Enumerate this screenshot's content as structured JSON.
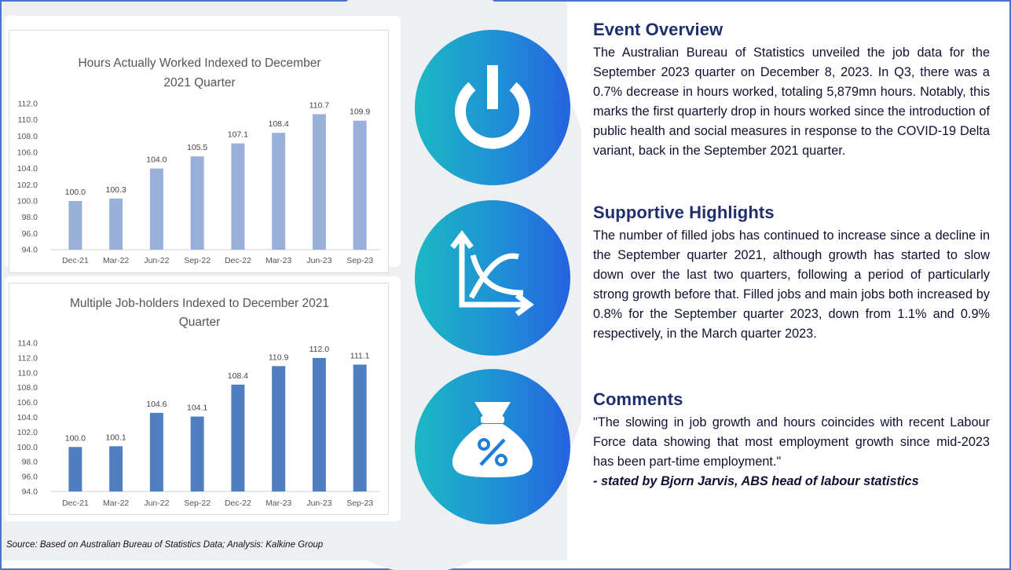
{
  "charts": [
    {
      "title_line1": "Hours Actually Worked Indexed to December",
      "title_line2": "2021 Quarter"
    },
    {
      "title_line1": "Multiple Job-holders Indexed to December 2021",
      "title_line2": "Quarter"
    }
  ],
  "chart_data": [
    {
      "type": "bar",
      "title": "Hours Actually Worked Indexed to December 2021 Quarter",
      "categories": [
        "Dec-21",
        "Mar-22",
        "Jun-22",
        "Sep-22",
        "Dec-22",
        "Mar-23",
        "Jun-23",
        "Sep-23"
      ],
      "values": [
        100.0,
        100.3,
        104.0,
        105.5,
        107.1,
        108.4,
        110.7,
        109.9
      ],
      "ylim": [
        94.0,
        112.0
      ],
      "yticks": [
        94.0,
        96.0,
        98.0,
        100.0,
        102.0,
        104.0,
        106.0,
        108.0,
        110.0,
        112.0
      ],
      "grid": false,
      "bar_color": "#98b0da"
    },
    {
      "type": "bar",
      "title": "Multiple Job-holders Indexed to December 2021 Quarter",
      "categories": [
        "Dec-21",
        "Mar-22",
        "Jun-22",
        "Sep-22",
        "Dec-22",
        "Mar-23",
        "Jun-23",
        "Sep-23"
      ],
      "values": [
        100.0,
        100.1,
        104.6,
        104.1,
        108.4,
        110.9,
        112.0,
        111.1
      ],
      "ylim": [
        94.0,
        114.0
      ],
      "yticks": [
        94.0,
        96.0,
        98.0,
        100.0,
        102.0,
        104.0,
        106.0,
        108.0,
        110.0,
        112.0,
        114.0
      ],
      "grid": false,
      "bar_color": "#4f7fc1"
    }
  ],
  "icons": [
    "power-icon",
    "chart-curve-icon",
    "money-bag-percent-icon"
  ],
  "sections": {
    "overview": {
      "heading": "Event Overview",
      "body": "The Australian Bureau of Statistics unveiled the job data for the September 2023 quarter on December 8, 2023. In Q3, there was a 0.7% decrease in hours worked, totaling 5,879mn hours. Notably, this marks the first quarterly drop in hours worked since the introduction of public health and social measures in response to the COVID-19 Delta variant, back in the September 2021 quarter."
    },
    "highlights": {
      "heading": "Supportive Highlights",
      "body": "The number of filled jobs has continued to increase since a decline in the September quarter 2021, although growth has started to slow down over the last two quarters, following a period of particularly strong growth before that. Filled jobs and main jobs both increased by 0.8% for the September quarter 2023, down from 1.1% and 0.9% respectively, in the March quarter 2023."
    },
    "comments": {
      "heading": "Comments",
      "quote": "\"The slowing in job growth and hours coincides with recent Labour Force data showing that most employment growth since mid-2023 has been part-time employment.\"",
      "attribution": "- stated by Bjorn Jarvis, ABS head of labour statistics"
    }
  },
  "source": "Source: Based on Australian Bureau of Statistics Data; Analysis: Kalkine Group",
  "colors": {
    "heading": "#1f2f6b",
    "frame": "#4a74c9",
    "circle_start": "#1bb8c4",
    "circle_end": "#2563e0"
  }
}
